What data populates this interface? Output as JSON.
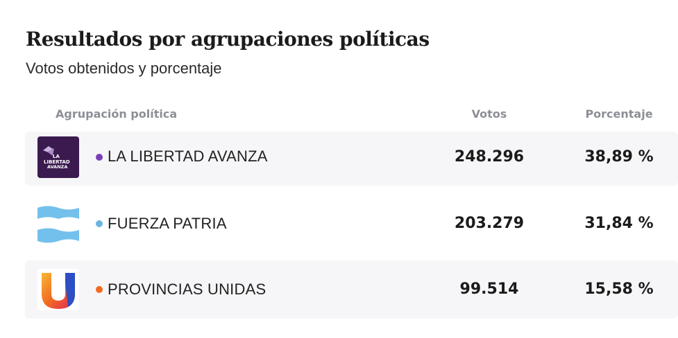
{
  "header": {
    "title": "Resultados por agrupaciones políticas",
    "subtitle": "Votos obtenidos y porcentaje"
  },
  "table": {
    "columns": [
      "Agrupación política",
      "Votos",
      "Porcentaje"
    ],
    "rows": [
      {
        "name": "LA LIBERTAD AVANZA",
        "votes": "248.296",
        "percent": "38,89 %",
        "color": "#7b3fb5",
        "logo": "la-libertad-avanza-logo",
        "logo_text": "LA LIBERTAD AVANZA"
      },
      {
        "name": "FUERZA PATRIA",
        "votes": "203.279",
        "percent": "31,84 %",
        "color": "#6cb4e0",
        "logo": "argentina-flag-logo"
      },
      {
        "name": "PROVINCIAS UNIDAS",
        "votes": "99.514",
        "percent": "15,58 %",
        "color": "#f26a21",
        "logo": "provincias-unidas-u-logo"
      }
    ]
  },
  "colors": {
    "row_shade": "#f6f6f8",
    "header_text": "#8c8f96",
    "lla_purple": "#3b1a4f",
    "fp_blue": "#74c0ec"
  }
}
